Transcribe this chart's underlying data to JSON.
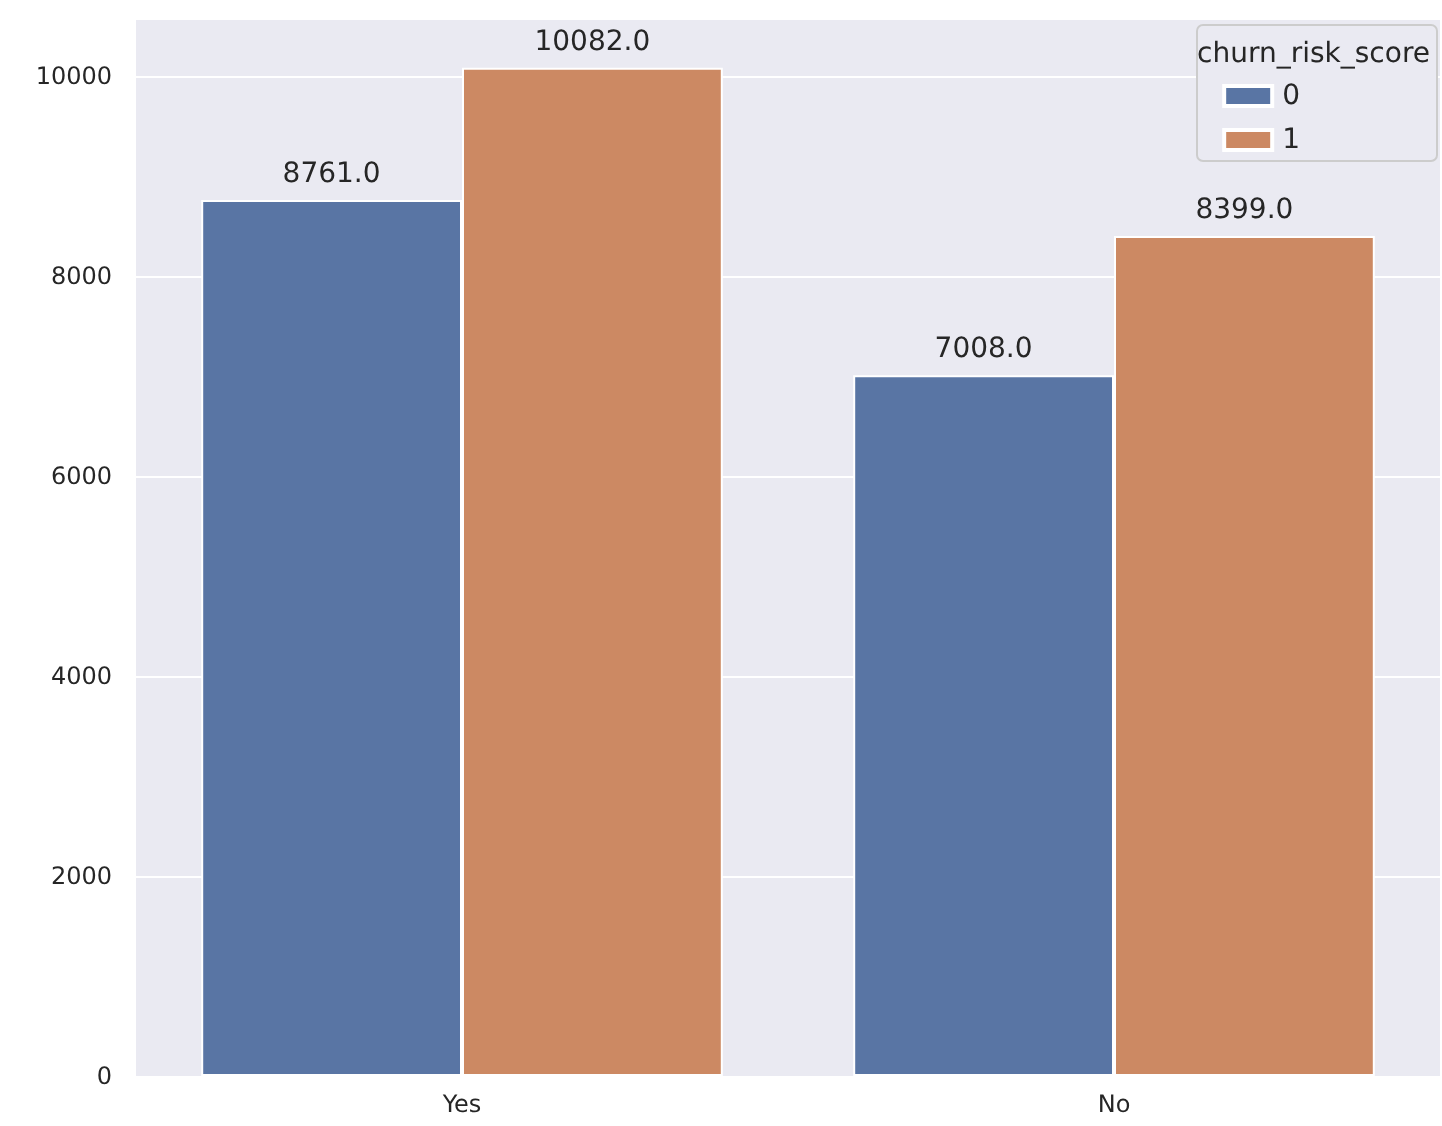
{
  "chart_data": {
    "type": "bar",
    "categories": [
      "Yes",
      "No"
    ],
    "series": [
      {
        "name": "0",
        "color": "#5975a4",
        "values": [
          8761,
          7008
        ],
        "value_labels": [
          "8761.0",
          "7008.0"
        ]
      },
      {
        "name": "1",
        "color": "#cc8963",
        "values": [
          10082,
          8399
        ],
        "value_labels": [
          "10082.0",
          "8399.0"
        ]
      }
    ],
    "legend_title": "churn_risk_score",
    "legend": "top right",
    "grid": "y",
    "ylim": [
      0,
      10560
    ],
    "yticks": [
      0,
      2000,
      4000,
      6000,
      8000,
      10000
    ]
  }
}
